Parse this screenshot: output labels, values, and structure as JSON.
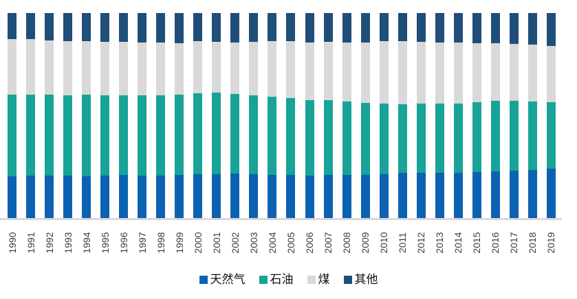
{
  "chart_data": {
    "type": "bar",
    "subtype": "stacked-100-percent-column",
    "title": "",
    "xlabel": "",
    "ylabel": "",
    "unit": "%",
    "ylim": [
      0,
      100
    ],
    "grid": false,
    "legend_position": "bottom",
    "axis_line_color": "#D9D9D9",
    "tick_label_color": "#3C3C3C",
    "categories": [
      "1990",
      "1991",
      "1992",
      "1993",
      "1994",
      "1995",
      "1996",
      "1997",
      "1998",
      "1999",
      "2000",
      "2001",
      "2002",
      "2003",
      "2004",
      "2005",
      "2006",
      "2007",
      "2008",
      "2009",
      "2010",
      "2011",
      "2012",
      "2013",
      "2014",
      "2015",
      "2016",
      "2017",
      "2018",
      "2019"
    ],
    "stack_order_bottom_to_top": [
      "天然气",
      "石油",
      "煤",
      "其他"
    ],
    "series": [
      {
        "id": "natural-gas",
        "name": "天然气",
        "color": "#0C62B2",
        "values": [
          20.7,
          21.0,
          21.0,
          20.9,
          20.8,
          21.0,
          21.4,
          21.1,
          21.1,
          21.2,
          21.7,
          21.7,
          21.9,
          21.7,
          21.4,
          21.4,
          21.2,
          21.4,
          21.4,
          21.2,
          21.7,
          22.2,
          22.4,
          22.2,
          22.2,
          22.7,
          23.1,
          23.3,
          23.8,
          24.2
        ]
      },
      {
        "id": "oil",
        "name": "石油",
        "color": "#17A398",
        "values": [
          39.5,
          39.2,
          39.4,
          39.2,
          39.5,
          39.0,
          38.7,
          38.9,
          39.0,
          39.2,
          39.4,
          39.6,
          38.8,
          38.3,
          37.9,
          37.3,
          36.6,
          36.2,
          35.5,
          35.2,
          34.2,
          33.5,
          33.6,
          33.7,
          33.7,
          34.1,
          34.1,
          33.9,
          33.2,
          32.6
        ]
      },
      {
        "id": "coal",
        "name": "煤",
        "color": "#D9D9D9",
        "values": [
          27.2,
          27.0,
          26.4,
          26.3,
          26.0,
          26.0,
          26.0,
          25.8,
          25.6,
          25.1,
          25.1,
          24.7,
          25.0,
          26.0,
          26.9,
          27.5,
          28.4,
          28.4,
          28.8,
          29.4,
          30.3,
          30.5,
          30.0,
          29.9,
          29.7,
          28.6,
          28.2,
          27.8,
          27.6,
          27.3
        ]
      },
      {
        "id": "other",
        "name": "其他",
        "color": "#1F4E79",
        "values": [
          12.6,
          12.8,
          13.2,
          13.6,
          13.7,
          14.0,
          13.9,
          14.2,
          14.3,
          14.5,
          13.8,
          14.0,
          14.3,
          14.0,
          13.8,
          13.8,
          14.3,
          14.0,
          14.3,
          14.2,
          13.8,
          13.8,
          14.0,
          14.2,
          14.4,
          14.6,
          14.6,
          15.0,
          15.4,
          15.9
        ]
      }
    ]
  }
}
